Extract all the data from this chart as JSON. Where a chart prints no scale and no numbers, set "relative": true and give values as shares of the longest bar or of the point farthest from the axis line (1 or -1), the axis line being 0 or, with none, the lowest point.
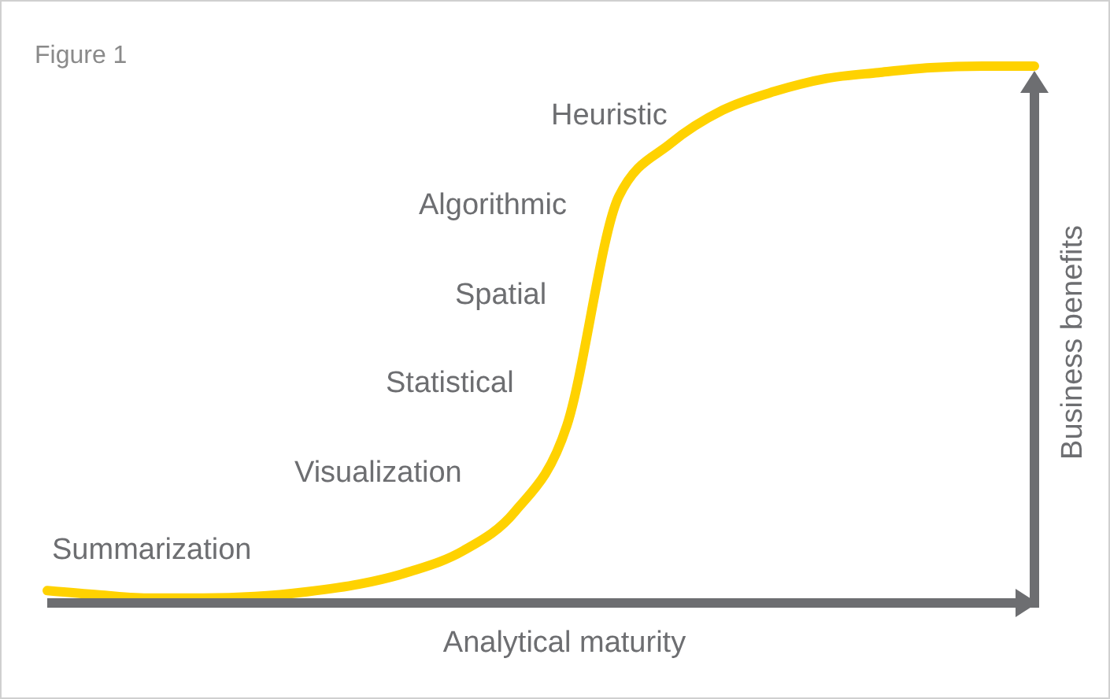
{
  "chart_data": {
    "type": "line",
    "title": "Figure 1",
    "xlabel": "Analytical maturity",
    "ylabel": "Business benefits",
    "relative": true,
    "categories": [
      null,
      null,
      null,
      null,
      null,
      null,
      null,
      null,
      null,
      null,
      null,
      null,
      null,
      null,
      null,
      null,
      null,
      null,
      null,
      null
    ],
    "series": [
      {
        "color": "#ffd200",
        "values": [
          0.023,
          0.015,
          0.009,
          0.009,
          0.012,
          0.021,
          0.035,
          0.059,
          0.097,
          0.17,
          0.33,
          0.757,
          0.856,
          0.918,
          0.953,
          0.977,
          0.988,
          0.997,
          1,
          1
        ]
      }
    ],
    "annotations": [
      "Summarization",
      "Visualization",
      "Statistical",
      "Spatial",
      "Algorithmic",
      "Heuristic"
    ]
  }
}
